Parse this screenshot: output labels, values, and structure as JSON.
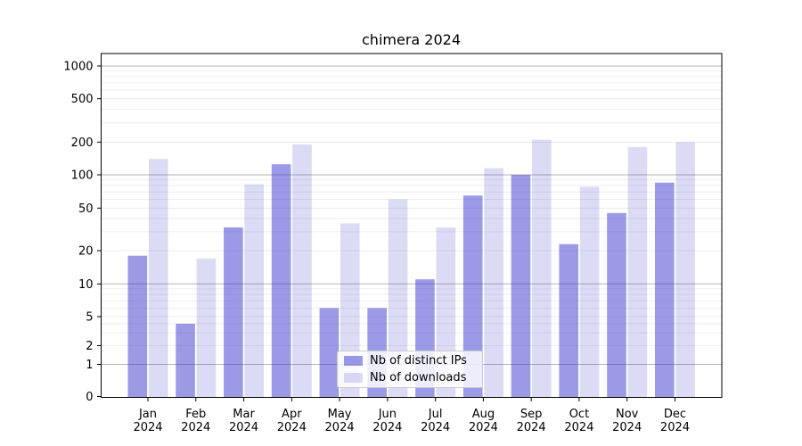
{
  "figure": {
    "title": "chimera 2024"
  },
  "colors": {
    "distinct_ips_bar": "rgba(53,53,205,0.50)",
    "downloads_bar": "rgba(53,53,205,0.18)",
    "major_gridline": "#b3b3b3",
    "minor_gridline": "#e9e9e9",
    "axis_line": "#000000",
    "text": "#000000",
    "legend_border": "#cccccc"
  },
  "chart_data": {
    "type": "bar",
    "title": "chimera 2024",
    "categories": [
      "Jan",
      "Feb",
      "Mar",
      "Apr",
      "May",
      "Jun",
      "Jul",
      "Aug",
      "Sep",
      "Oct",
      "Nov",
      "Dec"
    ],
    "category_year": "2024",
    "series": [
      {
        "name": "Nb of distinct IPs",
        "color_key": "distinct_ips_bar",
        "values": [
          18,
          4,
          33,
          125,
          6,
          6,
          11,
          65,
          100,
          23,
          45,
          85
        ]
      },
      {
        "name": "Nb of downloads",
        "color_key": "downloads_bar",
        "values": [
          140,
          17,
          82,
          190,
          36,
          60,
          33,
          115,
          210,
          78,
          180,
          200
        ]
      }
    ],
    "yaxis": {
      "scale": "log-like with linear 0-1 segment",
      "tick_values": [
        0,
        1,
        2,
        5,
        10,
        20,
        50,
        100,
        200,
        500,
        1000
      ],
      "tick_labels": [
        "0",
        "1",
        "2",
        "5",
        "10",
        "20",
        "50",
        "100",
        "200",
        "500",
        "1000"
      ],
      "major_gridlines": [
        1,
        10,
        100,
        1000
      ],
      "minor_gridlines": [
        2,
        3,
        4,
        5,
        6,
        7,
        8,
        9,
        20,
        30,
        40,
        50,
        60,
        70,
        80,
        90,
        200,
        300,
        400,
        500,
        600,
        700,
        800,
        900
      ],
      "ylim": [
        0,
        1300
      ],
      "grid": "on"
    },
    "xaxis": {
      "label_line1": [
        "Jan",
        "Feb",
        "Mar",
        "Apr",
        "May",
        "Jun",
        "Jul",
        "Aug",
        "Sep",
        "Oct",
        "Nov",
        "Dec"
      ],
      "label_line2": "2024"
    },
    "legend_position": "lower center"
  }
}
